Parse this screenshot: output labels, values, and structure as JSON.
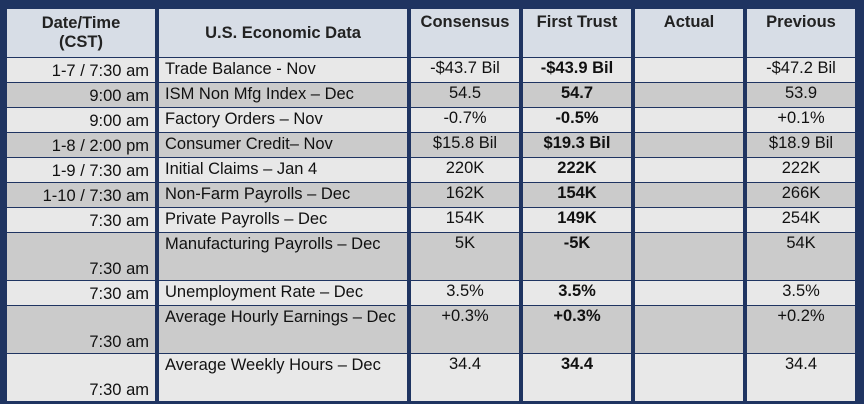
{
  "headers": {
    "date_time_line1": "Date/Time",
    "date_time_line2": "(CST)",
    "data": "U.S. Economic Data",
    "consensus": "Consensus",
    "first_trust": "First Trust",
    "actual": "Actual",
    "previous": "Previous"
  },
  "rows": [
    {
      "date": "1-7 / 7:30 am",
      "event": "Trade Balance - Nov",
      "consensus": "-$43.7 Bil",
      "first_trust": "-$43.9 Bil",
      "actual": "",
      "previous": "-$47.2 Bil"
    },
    {
      "date": "9:00 am",
      "event": "ISM Non Mfg Index – Dec",
      "consensus": "54.5",
      "first_trust": "54.7",
      "actual": "",
      "previous": "53.9"
    },
    {
      "date": "9:00 am",
      "event": "Factory Orders – Nov",
      "consensus": "-0.7%",
      "first_trust": "-0.5%",
      "actual": "",
      "previous": "+0.1%"
    },
    {
      "date": "1-8 / 2:00 pm",
      "event": "Consumer Credit– Nov",
      "consensus": "$15.8 Bil",
      "first_trust": "$19.3 Bil",
      "actual": "",
      "previous": "$18.9 Bil"
    },
    {
      "date": "1-9 / 7:30 am",
      "event": "Initial Claims – Jan 4",
      "consensus": "220K",
      "first_trust": "222K",
      "actual": "",
      "previous": "222K"
    },
    {
      "date": "1-10 / 7:30 am",
      "event": "Non-Farm Payrolls – Dec",
      "consensus": "162K",
      "first_trust": "154K",
      "actual": "",
      "previous": "266K"
    },
    {
      "date": "7:30 am",
      "event": "Private Payrolls – Dec",
      "consensus": "154K",
      "first_trust": "149K",
      "actual": "",
      "previous": "254K"
    },
    {
      "date": "7:30 am",
      "event": "Manufacturing Payrolls – Dec",
      "consensus": "5K",
      "first_trust": "-5K",
      "actual": "",
      "previous": "54K"
    },
    {
      "date": "7:30 am",
      "event": "Unemployment Rate – Dec",
      "consensus": "3.5%",
      "first_trust": "3.5%",
      "actual": "",
      "previous": "3.5%"
    },
    {
      "date": "7:30 am",
      "event": "Average Hourly Earnings – Dec",
      "consensus": "+0.3%",
      "first_trust": "+0.3%",
      "actual": "",
      "previous": "+0.2%"
    },
    {
      "date": "7:30 am",
      "event": "Average Weekly Hours – Dec",
      "consensus": "34.4",
      "first_trust": "34.4",
      "actual": "",
      "previous": "34.4"
    }
  ],
  "colors": {
    "frame": "#1f3461",
    "header_bg": "#d7dde6",
    "row_light": "#e8e8e8",
    "row_dark": "#cbcbcb"
  }
}
